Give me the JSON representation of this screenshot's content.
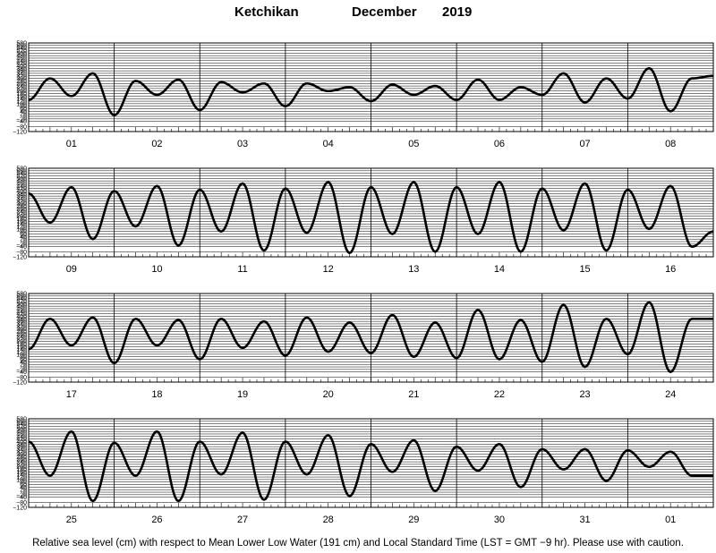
{
  "header": {
    "station": "Ketchikan",
    "month": "December",
    "year": "2019"
  },
  "footnote": "Relative sea level (cm) with respect to Mean Lower Low Water (191 cm) and Local Standard Time (LST = GMT −9 hr). Please use with caution.",
  "colors": {
    "curve": "#000000",
    "grid": "#000000",
    "background": "#ffffff"
  },
  "chart_data": {
    "type": "line",
    "title": "Ketchikan December 2019",
    "ylim": [
      -120,
      580
    ],
    "y_ticks": [
      -120,
      -80,
      -40,
      -20,
      0,
      20,
      40,
      60,
      80,
      100,
      120,
      140,
      160,
      180,
      200,
      220,
      240,
      260,
      280,
      300,
      320,
      340,
      360,
      380,
      400,
      420,
      440,
      460,
      480,
      500,
      520,
      540,
      560,
      580
    ],
    "y_tick_labels": [
      "−120",
      "−80",
      "−40",
      "−20",
      "0",
      "20",
      "40",
      "60",
      "80",
      "100",
      "120",
      "140",
      "160",
      "180",
      "200",
      "220",
      "240",
      "260",
      "280",
      "300",
      "320",
      "340",
      "360",
      "380",
      "400",
      "420",
      "440",
      "460",
      "480",
      "500",
      "520",
      "540",
      "560",
      "580"
    ],
    "grid": true,
    "days_per_panel": 8,
    "panels": [
      {
        "day_labels": [
          "01",
          "02",
          "03",
          "04",
          "05",
          "06",
          "07",
          "08"
        ],
        "x_hours": [
          0,
          6,
          12,
          18,
          24,
          30,
          36,
          42,
          48,
          54,
          60,
          66,
          72,
          78,
          84,
          90,
          96,
          102,
          108,
          114,
          120,
          126,
          132,
          138,
          144,
          150,
          156,
          162,
          168,
          174,
          180,
          186,
          192
        ],
        "y_cm": [
          130,
          300,
          160,
          340,
          10,
          280,
          170,
          290,
          50,
          270,
          190,
          260,
          80,
          260,
          200,
          230,
          120,
          250,
          170,
          240,
          130,
          290,
          130,
          230,
          170,
          340,
          110,
          300,
          140,
          380,
          40,
          300,
          320
        ]
      },
      {
        "day_labels": [
          "09",
          "10",
          "11",
          "12",
          "13",
          "14",
          "15",
          "16"
        ],
        "x_hours": [
          0,
          6,
          12,
          18,
          24,
          30,
          36,
          42,
          48,
          54,
          60,
          66,
          72,
          78,
          84,
          90,
          96,
          102,
          108,
          114,
          120,
          126,
          132,
          138,
          144,
          150,
          156,
          162,
          168,
          174,
          180,
          186,
          192
        ],
        "y_cm": [
          380,
          150,
          430,
          20,
          400,
          120,
          440,
          -30,
          410,
          80,
          460,
          -70,
          420,
          70,
          470,
          -90,
          430,
          60,
          470,
          -80,
          430,
          60,
          470,
          -80,
          420,
          90,
          460,
          -70,
          410,
          100,
          440,
          -40,
          80
        ],
        "x_hours_note": "sampled at local extrema"
      },
      {
        "day_labels": [
          "17",
          "18",
          "19",
          "20",
          "21",
          "22",
          "23",
          "24"
        ],
        "x_hours": [
          0,
          6,
          12,
          18,
          24,
          30,
          36,
          42,
          48,
          54,
          60,
          66,
          72,
          78,
          84,
          90,
          96,
          102,
          108,
          114,
          120,
          126,
          132,
          138,
          144,
          150,
          156,
          162,
          168,
          174,
          180,
          186,
          192
        ],
        "y_cm": [
          140,
          380,
          170,
          390,
          30,
          380,
          170,
          370,
          60,
          380,
          150,
          360,
          90,
          390,
          120,
          350,
          110,
          410,
          80,
          350,
          70,
          450,
          60,
          370,
          40,
          490,
          0,
          380,
          100,
          510,
          -40,
          380,
          380
        ]
      },
      {
        "day_labels": [
          "25",
          "26",
          "27",
          "28",
          "29",
          "30",
          "31",
          "01"
        ],
        "x_hours": [
          0,
          6,
          12,
          18,
          24,
          30,
          36,
          42,
          48,
          54,
          60,
          66,
          72,
          78,
          84,
          90,
          96,
          102,
          108,
          114,
          120,
          126,
          132,
          138,
          144,
          150,
          156,
          162,
          168,
          174,
          180,
          186,
          192
        ],
        "y_cm": [
          400,
          130,
          480,
          -70,
          390,
          130,
          480,
          -70,
          400,
          140,
          470,
          -60,
          400,
          140,
          450,
          -30,
          380,
          160,
          410,
          10,
          360,
          170,
          380,
          40,
          340,
          180,
          340,
          90,
          330,
          200,
          320,
          130,
          130
        ]
      }
    ]
  }
}
